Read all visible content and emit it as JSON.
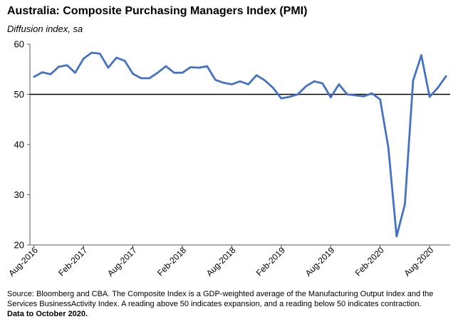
{
  "chart_data": {
    "type": "line",
    "title": "Australia:  Composite Purchasing Managers Index (PMI)",
    "subtitle": "Diffusion index, sa",
    "ylim": [
      20,
      60
    ],
    "yticks": [
      20,
      30,
      40,
      50,
      60
    ],
    "reference_line": 50,
    "x_tick_labels": [
      "Aug-2016",
      "Feb-2017",
      "Aug-2017",
      "Feb-2018",
      "Aug-2018",
      "Feb-2019",
      "Aug-2019",
      "Feb-2020",
      "Aug-2020"
    ],
    "x": [
      "Aug-2016",
      "Sep-2016",
      "Oct-2016",
      "Nov-2016",
      "Dec-2016",
      "Jan-2017",
      "Feb-2017",
      "Mar-2017",
      "Apr-2017",
      "May-2017",
      "Jun-2017",
      "Jul-2017",
      "Aug-2017",
      "Sep-2017",
      "Oct-2017",
      "Nov-2017",
      "Dec-2017",
      "Jan-2018",
      "Feb-2018",
      "Mar-2018",
      "Apr-2018",
      "May-2018",
      "Jun-2018",
      "Jul-2018",
      "Aug-2018",
      "Sep-2018",
      "Oct-2018",
      "Nov-2018",
      "Dec-2018",
      "Jan-2019",
      "Feb-2019",
      "Mar-2019",
      "Apr-2019",
      "May-2019",
      "Jun-2019",
      "Jul-2019",
      "Aug-2019",
      "Sep-2019",
      "Oct-2019",
      "Nov-2019",
      "Dec-2019",
      "Jan-2020",
      "Feb-2020",
      "Mar-2020",
      "Apr-2020",
      "May-2020",
      "Jun-2020",
      "Jul-2020",
      "Aug-2020",
      "Sep-2020",
      "Oct-2020"
    ],
    "series": [
      {
        "color": "#4472C4",
        "values": [
          53.5,
          54.4,
          54.0,
          55.5,
          55.8,
          54.3,
          57.1,
          58.3,
          58.1,
          55.3,
          57.3,
          56.7,
          54.1,
          53.2,
          53.2,
          54.3,
          55.6,
          54.3,
          54.3,
          55.4,
          55.3,
          55.6,
          52.9,
          52.3,
          52.0,
          52.6,
          52.0,
          53.8,
          52.8,
          51.3,
          49.2,
          49.5,
          50.0,
          51.6,
          52.6,
          52.2,
          49.4,
          52.0,
          50.0,
          49.8,
          49.6,
          50.2,
          49.0,
          39.4,
          21.7,
          28.1,
          52.7,
          57.8,
          49.5,
          51.3,
          53.6
        ]
      }
    ],
    "grid": false
  },
  "footnote": {
    "text": "Source: Bloomberg and CBA. The Composite Index is a GDP-weighted average of the Manufacturing Output Index and the Services BusinessActivity Index.  A reading above 50 indicates expansion, and a reading below 50 indicates contraction.",
    "data_to": "Data to October 2020."
  }
}
